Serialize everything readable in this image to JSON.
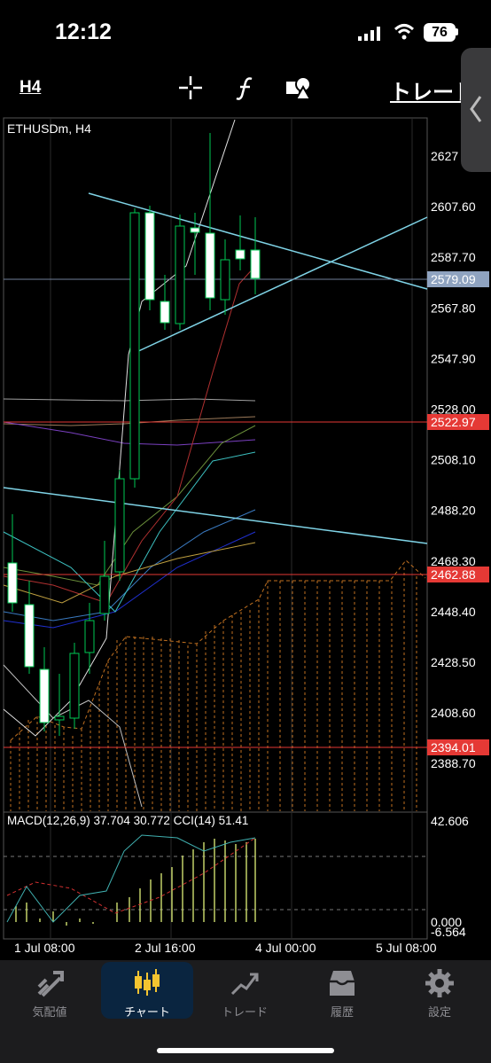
{
  "status": {
    "time": "12:12",
    "battery": "76"
  },
  "toolbar": {
    "timeframe": "H4",
    "trade_label": "トレード",
    "crosshair_icon": "crosshair-icon",
    "function_icon": "function-icon",
    "shapes_icon": "shapes-icon",
    "side_icon": "chevron-left-icon"
  },
  "chart": {
    "symbol_label": "ETHUSDm, H4",
    "price_ticks": [
      "2627",
      "2607.60",
      "2587.70",
      "2567.80",
      "2547.90",
      "2528.00",
      "2508.10",
      "2488.20",
      "2468.30",
      "2448.40",
      "2428.50",
      "2408.60",
      "2388.70"
    ],
    "price_tags": [
      {
        "value": "2579.09",
        "color": "#8fa3c0"
      },
      {
        "value": "2522.97",
        "color": "#e53935"
      },
      {
        "value": "2462.88",
        "color": "#e53935"
      },
      {
        "value": "2394.01",
        "color": "#e53935"
      }
    ],
    "time_labels": [
      "1 Jul 08:00",
      "2 Jul 16:00",
      "4 Jul 00:00",
      "5 Jul 08:00"
    ],
    "indicator_label": "MACD(12,26,9) 37.704 30.772 CCI(14) 51.41",
    "indicator_ticks": [
      "42.606",
      "0.000",
      "-6.564"
    ]
  },
  "tabs": [
    {
      "label": "気配値",
      "icon": "quotes-icon"
    },
    {
      "label": "チャート",
      "icon": "candles-icon"
    },
    {
      "label": "トレード",
      "icon": "trade-icon"
    },
    {
      "label": "履歴",
      "icon": "history-icon"
    },
    {
      "label": "設定",
      "icon": "settings-icon"
    }
  ],
  "colors": {
    "accent": "#0a84ff",
    "up_candle": "#00c853",
    "down_candle": "#ffffff",
    "line_tag": "#e53935"
  }
}
